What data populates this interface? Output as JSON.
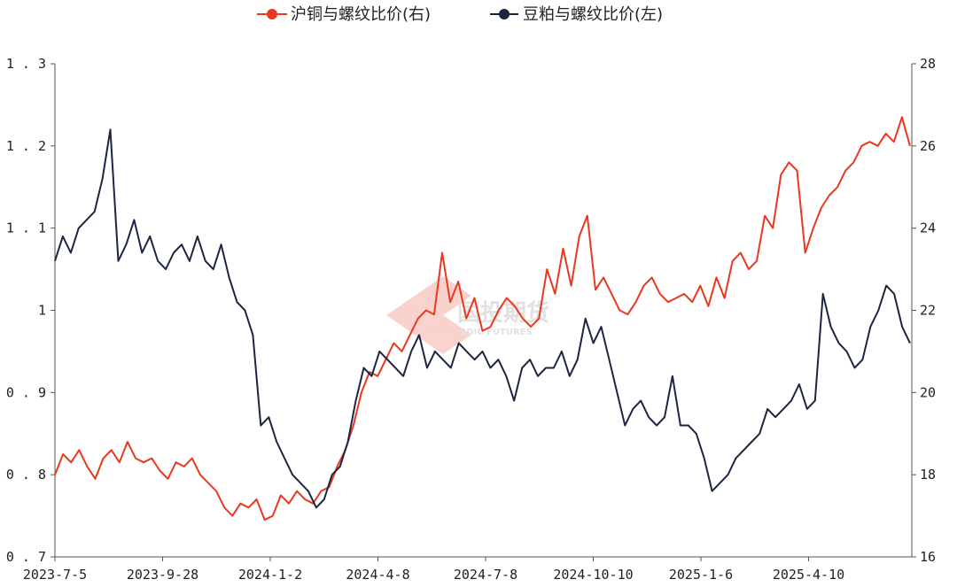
{
  "chart_data": {
    "type": "line",
    "title": "",
    "legend_position": "top-center",
    "grid": false,
    "watermark": {
      "text": "国投期货",
      "subtext": "SDIC FUTURES"
    },
    "x_ticks": [
      "2023-7-5",
      "2023-9-28",
      "2024-1-2",
      "2024-4-8",
      "2024-7-8",
      "2024-10-10",
      "2025-1-6",
      "2025-4-10"
    ],
    "left_axis": {
      "ylim": [
        0.7,
        1.3
      ],
      "ticks": [
        "0.7",
        "0.8",
        "0.9",
        "1",
        "1.1",
        "1.2",
        "1.3"
      ]
    },
    "right_axis": {
      "ylim": [
        16,
        28
      ],
      "ticks": [
        "16",
        "18",
        "20",
        "22",
        "24",
        "26",
        "28"
      ]
    },
    "series": [
      {
        "name": "沪铜与螺纹比价(右)",
        "color": "#e8381f",
        "axis": "right",
        "points": [
          [
            0,
            18.0
          ],
          [
            1,
            18.5
          ],
          [
            2,
            18.3
          ],
          [
            3,
            18.6
          ],
          [
            4,
            18.2
          ],
          [
            5,
            17.9
          ],
          [
            6,
            18.4
          ],
          [
            7,
            18.6
          ],
          [
            8,
            18.3
          ],
          [
            9,
            18.8
          ],
          [
            10,
            18.4
          ],
          [
            11,
            18.3
          ],
          [
            12,
            18.4
          ],
          [
            13,
            18.1
          ],
          [
            14,
            17.9
          ],
          [
            15,
            18.3
          ],
          [
            16,
            18.2
          ],
          [
            17,
            18.4
          ],
          [
            18,
            18.0
          ],
          [
            19,
            17.8
          ],
          [
            20,
            17.6
          ],
          [
            21,
            17.2
          ],
          [
            22,
            17.0
          ],
          [
            23,
            17.3
          ],
          [
            24,
            17.2
          ],
          [
            25,
            17.4
          ],
          [
            26,
            16.9
          ],
          [
            27,
            17.0
          ],
          [
            28,
            17.5
          ],
          [
            29,
            17.3
          ],
          [
            30,
            17.6
          ],
          [
            31,
            17.4
          ],
          [
            32,
            17.3
          ],
          [
            33,
            17.6
          ],
          [
            34,
            17.7
          ],
          [
            35,
            18.2
          ],
          [
            36,
            18.6
          ],
          [
            37,
            19.2
          ],
          [
            38,
            20.0
          ],
          [
            39,
            20.5
          ],
          [
            40,
            20.4
          ],
          [
            41,
            20.8
          ],
          [
            42,
            21.2
          ],
          [
            43,
            21.0
          ],
          [
            44,
            21.4
          ],
          [
            45,
            21.8
          ],
          [
            46,
            22.0
          ],
          [
            47,
            21.9
          ],
          [
            48,
            23.4
          ],
          [
            49,
            22.2
          ],
          [
            50,
            22.7
          ],
          [
            51,
            21.8
          ],
          [
            52,
            22.3
          ],
          [
            53,
            21.5
          ],
          [
            54,
            21.6
          ],
          [
            55,
            22.0
          ],
          [
            56,
            22.3
          ],
          [
            57,
            22.1
          ],
          [
            58,
            21.8
          ],
          [
            59,
            21.6
          ],
          [
            60,
            21.8
          ],
          [
            61,
            23.0
          ],
          [
            62,
            22.4
          ],
          [
            63,
            23.5
          ],
          [
            64,
            22.6
          ],
          [
            65,
            23.8
          ],
          [
            66,
            24.3
          ],
          [
            67,
            22.5
          ],
          [
            68,
            22.8
          ],
          [
            69,
            22.4
          ],
          [
            70,
            22.0
          ],
          [
            71,
            21.9
          ],
          [
            72,
            22.2
          ],
          [
            73,
            22.6
          ],
          [
            74,
            22.8
          ],
          [
            75,
            22.4
          ],
          [
            76,
            22.2
          ],
          [
            77,
            22.3
          ],
          [
            78,
            22.4
          ],
          [
            79,
            22.2
          ],
          [
            80,
            22.6
          ],
          [
            81,
            22.1
          ],
          [
            82,
            22.8
          ],
          [
            83,
            22.3
          ],
          [
            84,
            23.2
          ],
          [
            85,
            23.4
          ],
          [
            86,
            23.0
          ],
          [
            87,
            23.2
          ],
          [
            88,
            24.3
          ],
          [
            89,
            24.0
          ],
          [
            90,
            25.3
          ],
          [
            91,
            25.6
          ],
          [
            92,
            25.4
          ],
          [
            93,
            23.4
          ],
          [
            94,
            24.0
          ],
          [
            95,
            24.5
          ],
          [
            96,
            24.8
          ],
          [
            97,
            25.0
          ],
          [
            98,
            25.4
          ],
          [
            99,
            25.6
          ],
          [
            100,
            26.0
          ],
          [
            101,
            26.1
          ],
          [
            102,
            26.0
          ],
          [
            103,
            26.3
          ],
          [
            104,
            26.1
          ],
          [
            105,
            26.7
          ],
          [
            106,
            26.0
          ]
        ]
      },
      {
        "name": "豆粕与螺纹比价(左)",
        "color": "#1e2541",
        "axis": "left",
        "points": [
          [
            0,
            1.06
          ],
          [
            1,
            1.09
          ],
          [
            2,
            1.07
          ],
          [
            3,
            1.1
          ],
          [
            4,
            1.11
          ],
          [
            5,
            1.12
          ],
          [
            6,
            1.16
          ],
          [
            7,
            1.22
          ],
          [
            8,
            1.06
          ],
          [
            9,
            1.08
          ],
          [
            10,
            1.11
          ],
          [
            11,
            1.07
          ],
          [
            12,
            1.09
          ],
          [
            13,
            1.06
          ],
          [
            14,
            1.05
          ],
          [
            15,
            1.07
          ],
          [
            16,
            1.08
          ],
          [
            17,
            1.06
          ],
          [
            18,
            1.09
          ],
          [
            19,
            1.06
          ],
          [
            20,
            1.05
          ],
          [
            21,
            1.08
          ],
          [
            22,
            1.04
          ],
          [
            23,
            1.01
          ],
          [
            24,
            1.0
          ],
          [
            25,
            0.97
          ],
          [
            26,
            0.86
          ],
          [
            27,
            0.87
          ],
          [
            28,
            0.84
          ],
          [
            29,
            0.82
          ],
          [
            30,
            0.8
          ],
          [
            31,
            0.79
          ],
          [
            32,
            0.78
          ],
          [
            33,
            0.76
          ],
          [
            34,
            0.77
          ],
          [
            35,
            0.8
          ],
          [
            36,
            0.81
          ],
          [
            37,
            0.84
          ],
          [
            38,
            0.89
          ],
          [
            39,
            0.93
          ],
          [
            40,
            0.92
          ],
          [
            41,
            0.95
          ],
          [
            42,
            0.94
          ],
          [
            43,
            0.93
          ],
          [
            44,
            0.92
          ],
          [
            45,
            0.95
          ],
          [
            46,
            0.97
          ],
          [
            47,
            0.93
          ],
          [
            48,
            0.95
          ],
          [
            49,
            0.94
          ],
          [
            50,
            0.93
          ],
          [
            51,
            0.96
          ],
          [
            52,
            0.95
          ],
          [
            53,
            0.94
          ],
          [
            54,
            0.95
          ],
          [
            55,
            0.93
          ],
          [
            56,
            0.94
          ],
          [
            57,
            0.92
          ],
          [
            58,
            0.89
          ],
          [
            59,
            0.93
          ],
          [
            60,
            0.94
          ],
          [
            61,
            0.92
          ],
          [
            62,
            0.93
          ],
          [
            63,
            0.93
          ],
          [
            64,
            0.95
          ],
          [
            65,
            0.92
          ],
          [
            66,
            0.94
          ],
          [
            67,
            0.99
          ],
          [
            68,
            0.96
          ],
          [
            69,
            0.98
          ],
          [
            70,
            0.94
          ],
          [
            71,
            0.9
          ],
          [
            72,
            0.86
          ],
          [
            73,
            0.88
          ],
          [
            74,
            0.89
          ],
          [
            75,
            0.87
          ],
          [
            76,
            0.86
          ],
          [
            77,
            0.87
          ],
          [
            78,
            0.92
          ],
          [
            79,
            0.86
          ],
          [
            80,
            0.86
          ],
          [
            81,
            0.85
          ],
          [
            82,
            0.82
          ],
          [
            83,
            0.78
          ],
          [
            84,
            0.79
          ],
          [
            85,
            0.8
          ],
          [
            86,
            0.82
          ],
          [
            87,
            0.83
          ],
          [
            88,
            0.84
          ],
          [
            89,
            0.85
          ],
          [
            90,
            0.88
          ],
          [
            91,
            0.87
          ],
          [
            92,
            0.88
          ],
          [
            93,
            0.89
          ],
          [
            94,
            0.91
          ],
          [
            95,
            0.88
          ],
          [
            96,
            0.89
          ],
          [
            97,
            1.02
          ],
          [
            98,
            0.98
          ],
          [
            99,
            0.96
          ],
          [
            100,
            0.95
          ],
          [
            101,
            0.93
          ],
          [
            102,
            0.94
          ],
          [
            103,
            0.98
          ],
          [
            104,
            1.0
          ],
          [
            105,
            1.03
          ],
          [
            106,
            1.02
          ],
          [
            107,
            0.98
          ],
          [
            108,
            0.96
          ]
        ]
      }
    ]
  }
}
